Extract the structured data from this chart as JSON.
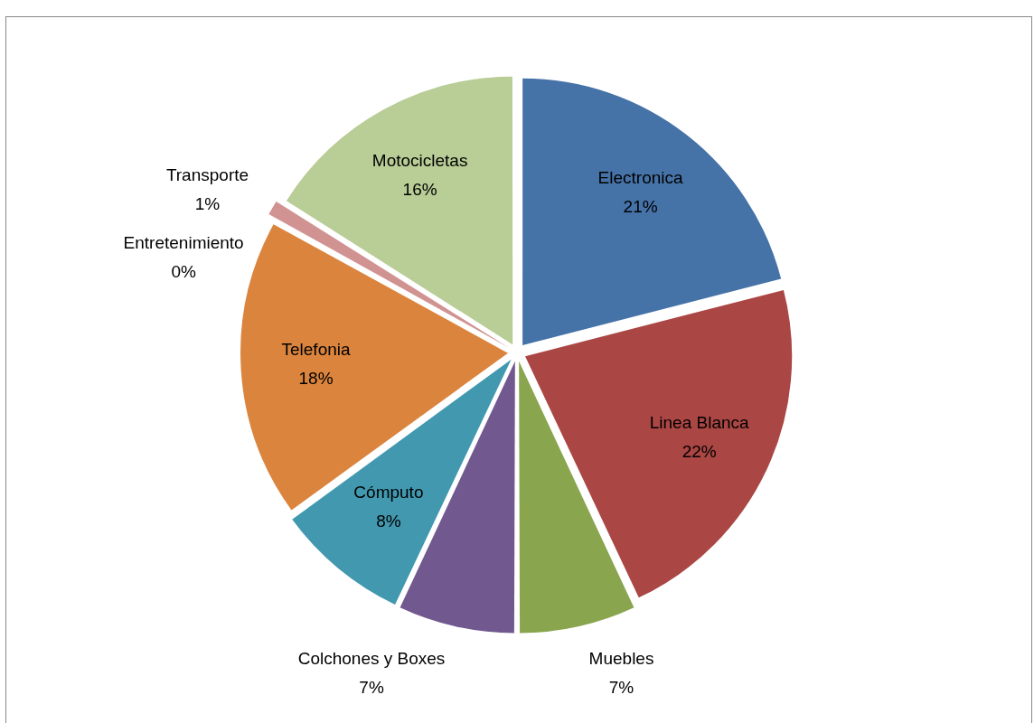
{
  "chart_data": {
    "type": "pie",
    "categories": [
      "Electronica",
      "Linea Blanca",
      "Muebles",
      "Colchones y Boxes",
      "Cómputo",
      "Telefonia",
      "Entretenimiento",
      "Transporte",
      "Motocicletas"
    ],
    "values": [
      21,
      22,
      7,
      7,
      8,
      18,
      0,
      1,
      16
    ],
    "value_labels": [
      "21%",
      "22%",
      "7%",
      "7%",
      "8%",
      "18%",
      "0%",
      "1%",
      "16%"
    ],
    "colors": [
      "#4572a7",
      "#aa4643",
      "#89a54e",
      "#71588f",
      "#4198af",
      "#db843d",
      "#93a9cf",
      "#d19392",
      "#b9cd96"
    ]
  }
}
